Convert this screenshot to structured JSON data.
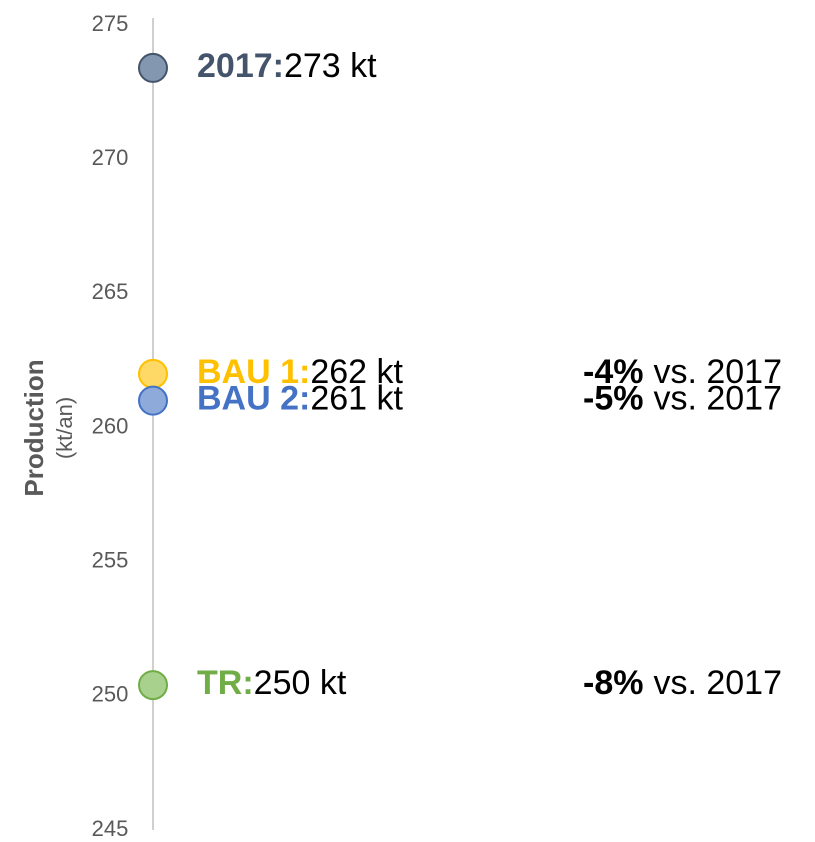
{
  "chart_data": {
    "type": "dot",
    "y_label": "Production",
    "y_label_unit": "(kt/an)",
    "ylim": [
      245,
      275
    ],
    "yticks": [
      245,
      250,
      255,
      260,
      265,
      270,
      275
    ],
    "series": [
      {
        "name": "2017:",
        "color": "#8497b0",
        "edge": "#44546a",
        "value": 273.4,
        "value_label": "273 kt"
      },
      {
        "name": "BAU 1:",
        "color": "#ffd966",
        "edge": "#ffc000",
        "value": 262,
        "value_label": "262 kt",
        "change": "-4%",
        "change_note": "vs. 2017"
      },
      {
        "name": "BAU 2:",
        "color": "#8eaadb",
        "edge": "#4472c4",
        "value": 261,
        "value_label": "261 kt",
        "change": "-5%",
        "change_note": "vs. 2017"
      },
      {
        "name": "TR:",
        "color": "#a9d18e",
        "edge": "#70ad47",
        "value": 250.4,
        "value_label": "250 kt",
        "change": "-8%",
        "change_note": "vs. 2017"
      }
    ]
  }
}
